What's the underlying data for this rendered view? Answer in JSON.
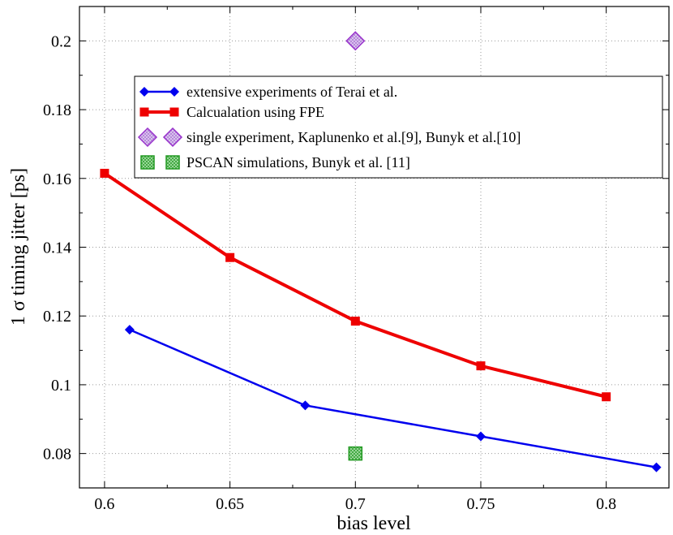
{
  "chart_data": {
    "type": "scatter",
    "title": "",
    "xlabel": "bias level",
    "ylabel": "1 σ timing jitter [ps]",
    "xlim": [
      0.59,
      0.825
    ],
    "ylim": [
      0.07,
      0.21
    ],
    "xticks": [
      0.6,
      0.65,
      0.7,
      0.75,
      0.8
    ],
    "xtick_labels": [
      "0.6",
      "0.65",
      "0.7",
      "0.75",
      "0.8"
    ],
    "yticks": [
      0.08,
      0.1,
      0.12,
      0.14,
      0.16,
      0.18,
      0.2
    ],
    "ytick_labels": [
      "0.08",
      "0.1",
      "0.12",
      "0.14",
      "0.16",
      "0.18",
      "0.2"
    ],
    "grid": true,
    "legend_position": "upper-right",
    "series": [
      {
        "name": "extensive experiments of Terai et al.",
        "color": "#0000ee",
        "marker": "diamond",
        "line": true,
        "x": [
          0.61,
          0.68,
          0.75,
          0.82
        ],
        "y": [
          0.116,
          0.094,
          0.085,
          0.076
        ]
      },
      {
        "name": "Calcualation using FPE",
        "color": "#ee0000",
        "marker": "square",
        "line": true,
        "x": [
          0.6,
          0.65,
          0.7,
          0.75,
          0.8
        ],
        "y": [
          0.1615,
          0.137,
          0.1185,
          0.1055,
          0.0965
        ]
      },
      {
        "name": "single experiment, Kaplunenko et al.[9], Bunyk et al.[10]",
        "color": "#9933cc",
        "marker": "big-diamond",
        "line": false,
        "x": [
          0.7
        ],
        "y": [
          0.2
        ]
      },
      {
        "name": "PSCAN simulations, Bunyk et al. [11]",
        "color": "#229922",
        "marker": "big-square",
        "line": false,
        "x": [
          0.7
        ],
        "y": [
          0.08
        ]
      }
    ]
  }
}
